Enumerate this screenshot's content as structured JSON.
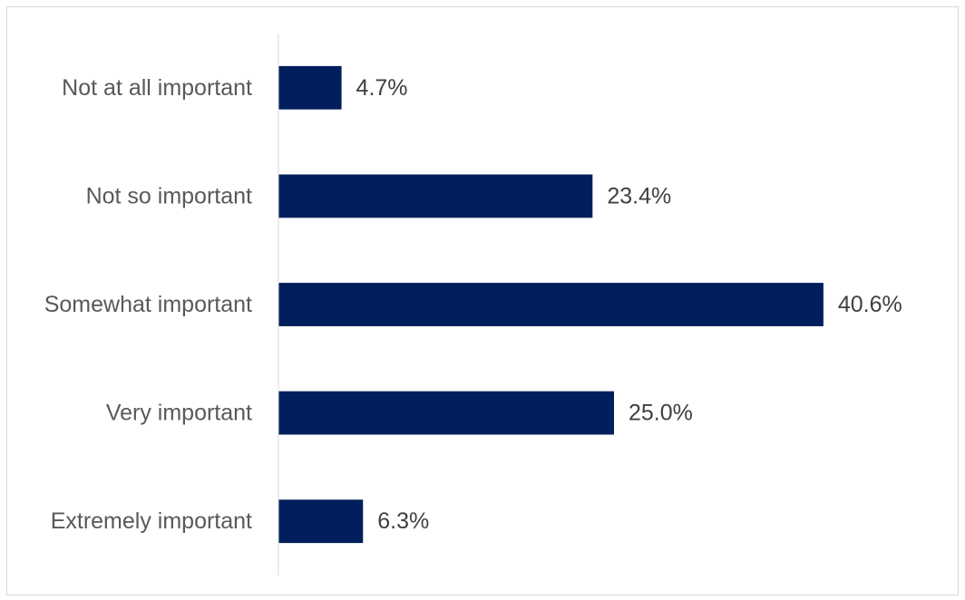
{
  "chart_data": {
    "type": "bar",
    "orientation": "horizontal",
    "categories": [
      "Not at all important",
      "Not so important",
      "Somewhat important",
      "Very important",
      "Extremely important"
    ],
    "values": [
      4.7,
      23.4,
      40.6,
      25.0,
      6.3
    ],
    "value_labels": [
      "4.7%",
      "23.4%",
      "40.6%",
      "25.0%",
      "6.3%"
    ],
    "title": "",
    "xlabel": "",
    "ylabel": "",
    "xlim": [
      0,
      50
    ],
    "grid": false,
    "legend": "none",
    "bar_color": "#001f5c",
    "axis_color": "#d9d9d9"
  }
}
